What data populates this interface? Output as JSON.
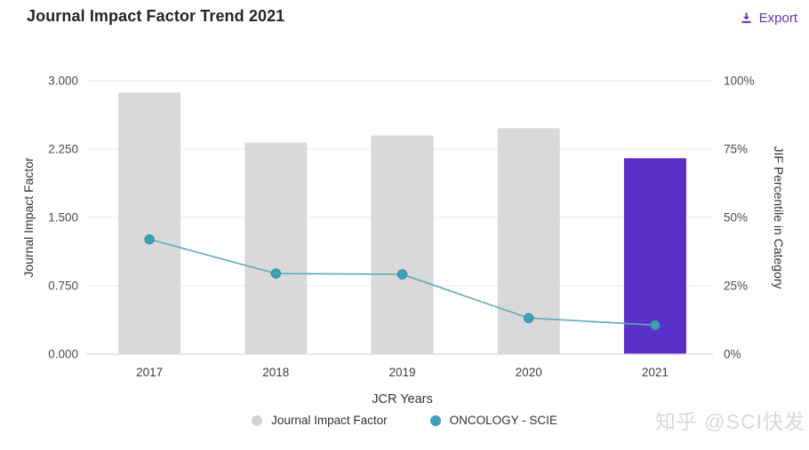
{
  "header": {
    "title": "Journal Impact Factor Trend 2021",
    "export_label": "Export"
  },
  "chart_data": {
    "type": "bar",
    "subtype": "combo-bar-line-dual-axis",
    "categories": [
      "2017",
      "2018",
      "2019",
      "2020",
      "2021"
    ],
    "series": [
      {
        "name": "Journal Impact Factor",
        "type": "bar",
        "axis": "left",
        "values": [
          2.87,
          2.32,
          2.4,
          2.48,
          2.15
        ],
        "bar_colors": [
          "#d9d9d9",
          "#d9d9d9",
          "#d9d9d9",
          "#d9d9d9",
          "#5b30c8"
        ]
      },
      {
        "name": "ONCOLOGY - SCIE",
        "type": "line",
        "axis": "right",
        "values": [
          42.0,
          29.5,
          29.2,
          13.2,
          10.6
        ],
        "line_color": "#5fa9bb",
        "point_color": "#3f9fb5",
        "point_stroke": "#358ba1"
      }
    ],
    "xlabel": "JCR Years",
    "ylabel_left": "Journal Impact Factor",
    "ylabel_right": "JIF Percentile in Category",
    "left_axis": {
      "min": 0,
      "max": 3,
      "ticks": [
        "3.000",
        "2.250",
        "1.500",
        "0.750",
        "0.000"
      ]
    },
    "right_axis": {
      "min": 0,
      "max": 100,
      "ticks": [
        "100%",
        "75%",
        "50%",
        "25%",
        "0%"
      ]
    },
    "grid": true,
    "legend_position": "bottom"
  },
  "legend": {
    "items": [
      {
        "label": "Journal Impact Factor",
        "color": "#d2d2d2"
      },
      {
        "label": "ONCOLOGY - SCIE",
        "color": "#3f9fb5"
      }
    ]
  },
  "watermark": "知乎 @SCI快发",
  "colors": {
    "accent_purple": "#5d33c1",
    "bar_gray": "#d9d9d9",
    "bar_highlight": "#5b30c8",
    "line_teal": "#5fa9bb",
    "grid_line": "#e9e9e9",
    "axis_line": "#d9d9d9",
    "tick_text": "#4a4a4a",
    "label_text": "#3c3c3c"
  }
}
